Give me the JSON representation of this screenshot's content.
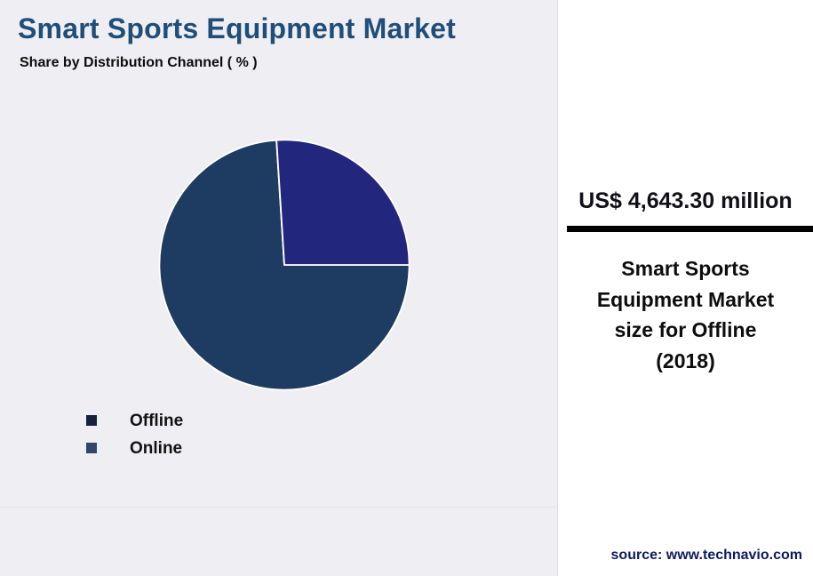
{
  "header": {
    "title": "Smart Sports Equipment Market",
    "subtitle": "Share by Distribution Channel ( % )"
  },
  "chart_data": {
    "type": "pie",
    "title": "Share by Distribution Channel ( % )",
    "labels": [
      "Offline",
      "Online"
    ],
    "values": [
      74,
      26
    ],
    "unit": "%",
    "colors": [
      "#1e3c62",
      "#22267d"
    ],
    "slice_border_color": "#ffffff",
    "start_angle_deg": 90,
    "legend_position": "bottom-left"
  },
  "legend": {
    "items": [
      {
        "label": "Offline",
        "marker_color": "#16223d"
      },
      {
        "label": "Online",
        "marker_color": "#31466b"
      }
    ]
  },
  "stat_panel": {
    "value": "US$ 4,643.30 million",
    "description": "Smart Sports Equipment Market size for Offline (2018)",
    "year": "2018",
    "segment": "Offline",
    "source": "source: www.technavio.com"
  },
  "colors": {
    "background": "#efeef3",
    "panel_background": "#ffffff",
    "title_color": "#1f4e79",
    "divider_bar": "#000000"
  }
}
